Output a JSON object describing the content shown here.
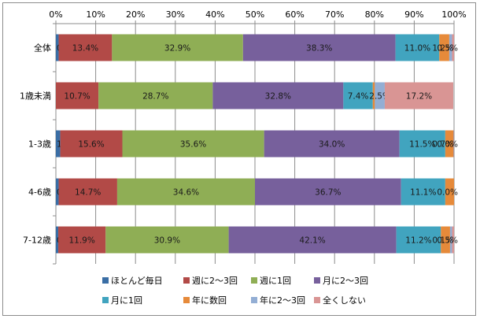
{
  "chart_data": {
    "type": "bar",
    "orientation": "horizontal",
    "stacked": "percent",
    "categories": [
      "全体",
      "1歳未満",
      "1-3歳",
      "4-6歳",
      "7-12歳"
    ],
    "series": [
      {
        "name": "ほとんど毎日",
        "color": "#3a6ea5",
        "values": [
          0.7,
          0.0,
          1.1,
          0.7,
          0.6
        ]
      },
      {
        "name": "週に2～3回",
        "color": "#b24a47",
        "values": [
          13.4,
          10.7,
          15.6,
          14.7,
          11.9
        ]
      },
      {
        "name": "週に1回",
        "color": "#8fae55",
        "values": [
          32.9,
          28.7,
          35.6,
          34.6,
          30.9
        ]
      },
      {
        "name": "月に2～3回",
        "color": "#77609c",
        "values": [
          38.3,
          32.8,
          34.0,
          36.7,
          42.1
        ]
      },
      {
        "name": "月に1回",
        "color": "#41a4bf",
        "values": [
          11.0,
          7.4,
          11.5,
          11.1,
          11.2
        ]
      },
      {
        "name": "年に数回",
        "color": "#e68a3a",
        "values": [
          2.5,
          0.5,
          2.0,
          2.2,
          2.3
        ]
      },
      {
        "name": "年に2～3回",
        "color": "#93aed4",
        "values": [
          0.7,
          2.5,
          0.0,
          0.0,
          0.5
        ]
      },
      {
        "name": "全くしない",
        "color": "#d99594",
        "values": [
          0.5,
          17.2,
          0.1,
          0.0,
          0.5
        ]
      }
    ],
    "data_labels": [
      [
        "0.7%",
        "13.4%",
        "32.9%",
        "38.3%",
        "11.0%",
        "",
        "",
        ""
      ],
      [
        "0.0%",
        "10.7%",
        "28.7%",
        "32.8%",
        "7.4%",
        "",
        "2.5%",
        "17.2%"
      ],
      [
        "1.1%",
        "15.6%",
        "35.6%",
        "34.0%",
        "11.5%",
        "",
        "",
        ""
      ],
      [
        "0.7%",
        "14.7%",
        "34.6%",
        "36.7%",
        "11.1%",
        "",
        "",
        ""
      ],
      [
        "0.6%",
        "11.9%",
        "30.9%",
        "42.1%",
        "11.2%",
        "",
        "",
        ""
      ]
    ],
    "end_labels": [
      "0.5%",
      "",
      "0.0%",
      "0.0%",
      "0.5%"
    ],
    "end_labels_overlap": [
      "1.2%",
      "",
      "0.7%",
      "",
      "0.1%"
    ],
    "x_ticks": [
      "0%",
      "10%",
      "20%",
      "30%",
      "40%",
      "50%",
      "60%",
      "70%",
      "80%",
      "90%",
      "100%"
    ],
    "xlim": [
      0,
      100
    ],
    "grid": true,
    "legend_position": "bottom"
  }
}
